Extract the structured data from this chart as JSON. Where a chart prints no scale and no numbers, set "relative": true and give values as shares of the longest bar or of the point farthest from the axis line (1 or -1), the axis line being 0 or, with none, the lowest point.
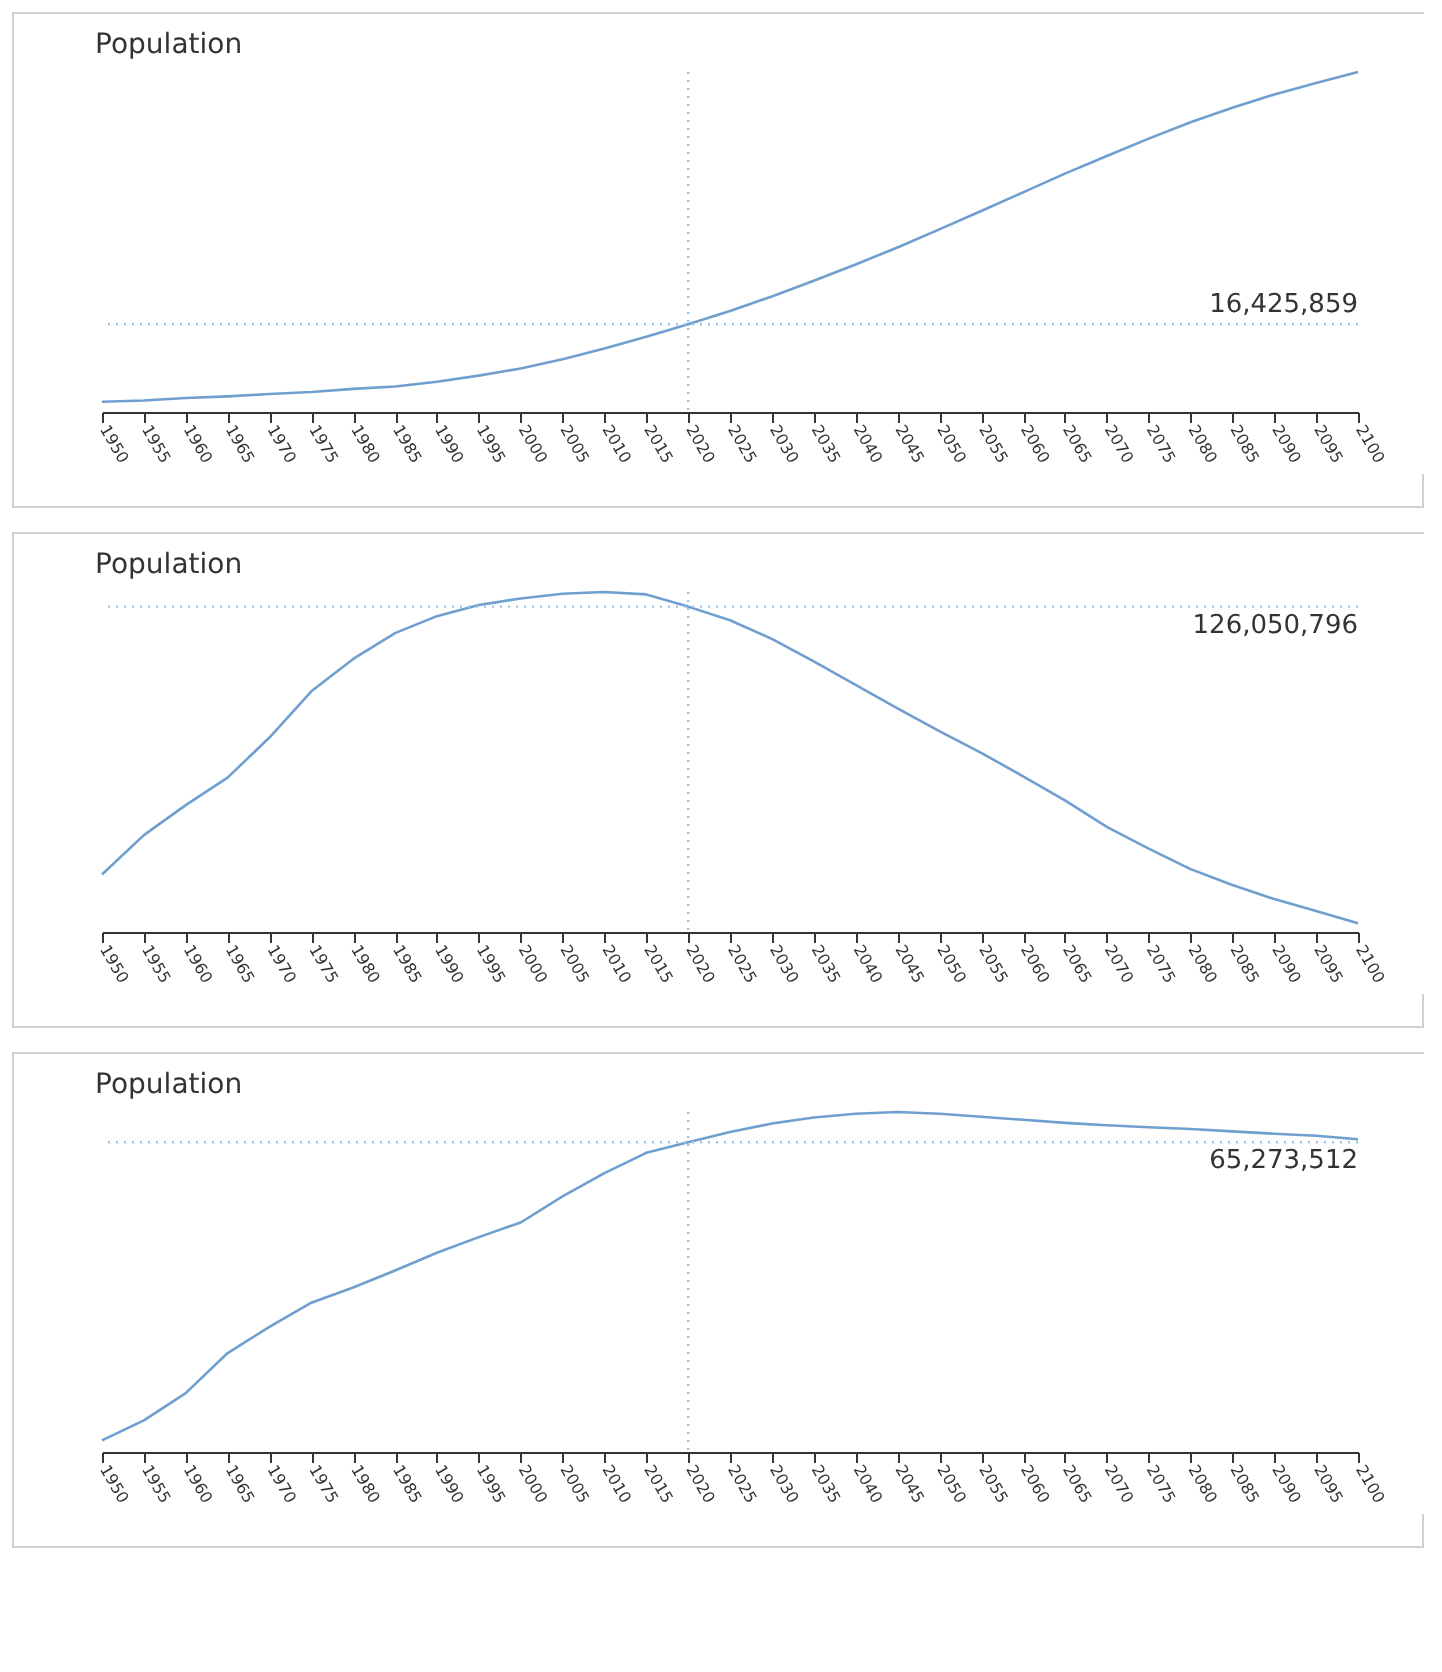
{
  "chart_data": [
    {
      "type": "line",
      "title": "Population",
      "relative": true,
      "xlim": [
        1950,
        2100
      ],
      "xticks": [
        1950,
        1955,
        1960,
        1965,
        1970,
        1975,
        1980,
        1985,
        1990,
        1995,
        2000,
        2005,
        2010,
        2015,
        2020,
        2025,
        2030,
        2035,
        2040,
        2045,
        2050,
        2055,
        2060,
        2065,
        2070,
        2075,
        2080,
        2085,
        2090,
        2095,
        2100
      ],
      "x": [
        1950,
        1955,
        1960,
        1965,
        1970,
        1975,
        1980,
        1985,
        1990,
        1995,
        2000,
        2005,
        2010,
        2015,
        2020,
        2025,
        2030,
        2035,
        2040,
        2045,
        2050,
        2055,
        2060,
        2065,
        2070,
        2075,
        2080,
        2085,
        2090,
        2095,
        2100
      ],
      "series": [
        {
          "color": "#6f9fcf",
          "values": [
            0.03,
            0.034,
            0.041,
            0.046,
            0.053,
            0.059,
            0.068,
            0.075,
            0.089,
            0.107,
            0.128,
            0.155,
            0.187,
            0.221,
            0.258,
            0.297,
            0.34,
            0.386,
            0.434,
            0.484,
            0.537,
            0.591,
            0.646,
            0.701,
            0.753,
            0.804,
            0.852,
            0.895,
            0.934,
            0.968,
            1
          ]
        }
      ],
      "ref_lines": [
        {
          "axis": "x",
          "value": 2020,
          "color": "#9dc3e6",
          "line_style": "dotted"
        },
        {
          "axis": "y",
          "value": 0.258,
          "color": "#9dc3e6",
          "line_style": "dotted"
        }
      ],
      "annotations": [
        "16,425,859"
      ]
    },
    {
      "type": "line",
      "title": "Population",
      "relative": true,
      "xlim": [
        1950,
        2100
      ],
      "xticks": [
        1950,
        1955,
        1960,
        1965,
        1970,
        1975,
        1980,
        1985,
        1990,
        1995,
        2000,
        2005,
        2010,
        2015,
        2020,
        2025,
        2030,
        2035,
        2040,
        2045,
        2050,
        2055,
        2060,
        2065,
        2070,
        2075,
        2080,
        2085,
        2090,
        2095,
        2100
      ],
      "x": [
        1950,
        1955,
        1960,
        1965,
        1970,
        1975,
        1980,
        1985,
        1990,
        1995,
        2000,
        2005,
        2010,
        2015,
        2020,
        2025,
        2030,
        2035,
        2040,
        2045,
        2050,
        2055,
        2060,
        2065,
        2070,
        2075,
        2080,
        2085,
        2090,
        2095,
        2100
      ],
      "series": [
        {
          "color": "#6f9fcf",
          "values": [
            0.169,
            0.285,
            0.373,
            0.454,
            0.572,
            0.708,
            0.803,
            0.879,
            0.929,
            0.962,
            0.981,
            0.995,
            1,
            0.993,
            0.957,
            0.917,
            0.862,
            0.796,
            0.727,
            0.658,
            0.591,
            0.527,
            0.458,
            0.387,
            0.309,
            0.245,
            0.185,
            0.138,
            0.097,
            0.062,
            0.026
          ]
        }
      ],
      "ref_lines": [
        {
          "axis": "x",
          "value": 2020,
          "color": "#9dc3e6",
          "line_style": "dotted"
        },
        {
          "axis": "y",
          "value": 0.957,
          "color": "#9dc3e6",
          "line_style": "dotted"
        }
      ],
      "annotations": [
        "126,050,796"
      ]
    },
    {
      "type": "line",
      "title": "Population",
      "relative": true,
      "xlim": [
        1950,
        2100
      ],
      "xticks": [
        1950,
        1955,
        1960,
        1965,
        1970,
        1975,
        1980,
        1985,
        1990,
        1995,
        2000,
        2005,
        2010,
        2015,
        2020,
        2025,
        2030,
        2035,
        2040,
        2045,
        2050,
        2055,
        2060,
        2065,
        2070,
        2075,
        2080,
        2085,
        2090,
        2095,
        2100
      ],
      "x": [
        1950,
        1955,
        1960,
        1965,
        1970,
        1975,
        1980,
        1985,
        1990,
        1995,
        2000,
        2005,
        2010,
        2015,
        2020,
        2025,
        2030,
        2035,
        2040,
        2045,
        2050,
        2055,
        2060,
        2065,
        2070,
        2075,
        2080,
        2085,
        2090,
        2095,
        2100
      ],
      "series": [
        {
          "color": "#6f9fcf",
          "values": [
            0.034,
            0.093,
            0.173,
            0.291,
            0.368,
            0.439,
            0.484,
            0.534,
            0.586,
            0.632,
            0.675,
            0.752,
            0.82,
            0.88,
            0.911,
            0.941,
            0.966,
            0.984,
            0.995,
            1,
            0.995,
            0.986,
            0.977,
            0.968,
            0.961,
            0.955,
            0.95,
            0.943,
            0.936,
            0.93,
            0.92
          ]
        }
      ],
      "ref_lines": [
        {
          "axis": "x",
          "value": 2020,
          "color": "#9dc3e6",
          "line_style": "dotted"
        },
        {
          "axis": "y",
          "value": 0.911,
          "color": "#9dc3e6",
          "line_style": "dotted"
        }
      ],
      "annotations": [
        "65,273,512"
      ]
    }
  ]
}
